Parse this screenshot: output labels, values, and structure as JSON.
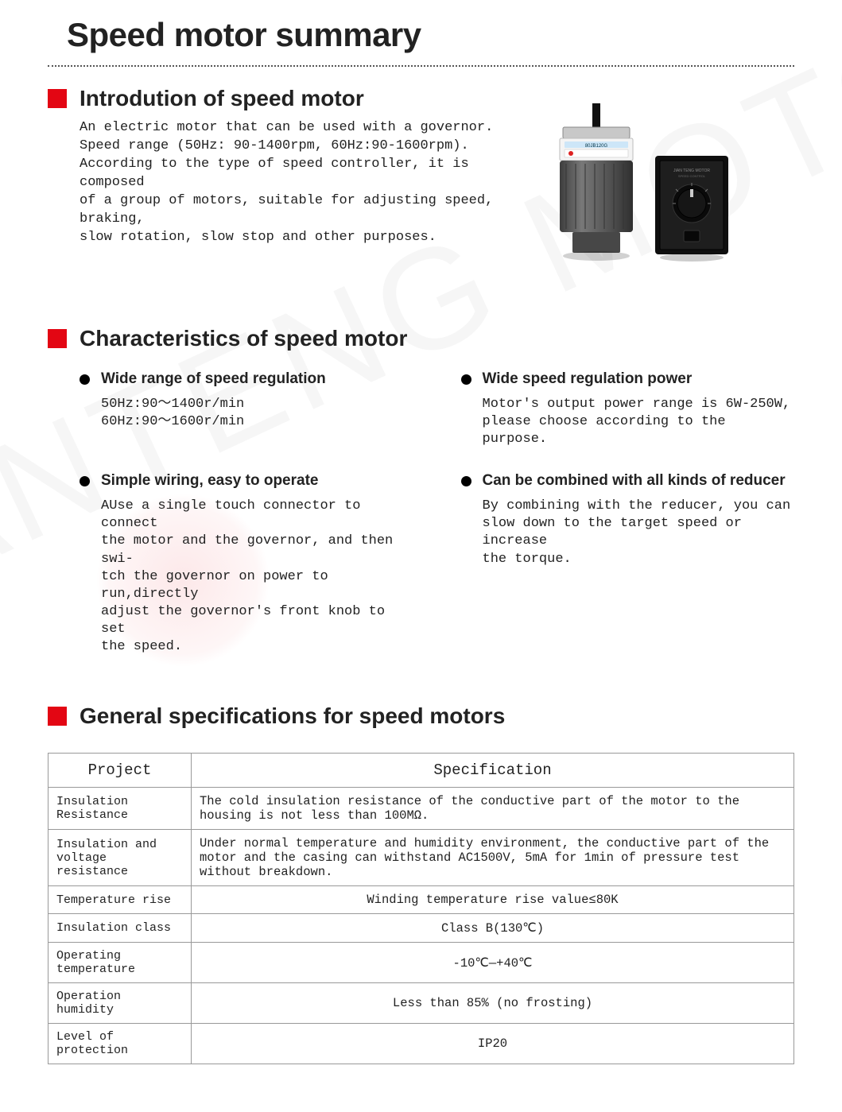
{
  "title": "Speed motor summary",
  "accent_color": "#e30613",
  "watermark_text": "JIANTENG MOTOR",
  "sections": {
    "intro": {
      "heading": "Introdution of speed motor",
      "body": "An electric motor that can be used with a governor.\nSpeed range (50Hz: 90-1400rpm, 60Hz:90-1600rpm).\nAccording to the type of speed controller, it is composed\nof a group of motors, suitable for adjusting speed, braking,\nslow rotation, slow stop and other purposes."
    },
    "characteristics": {
      "heading": "Characteristics of speed motor",
      "items": [
        {
          "title": "Wide range of speed regulation",
          "body": "50Hz:90～1400r/min\n60Hz:90～1600r/min"
        },
        {
          "title": "Wide speed regulation power",
          "body": "Motor's output power range is 6W-250W,\nplease choose according to the purpose."
        },
        {
          "title": "Simple wiring, easy to operate",
          "body": "AUse a single touch connector to connect\nthe motor and the governor, and then swi-\ntch the governor on power to run,directly\nadjust the governor's front knob to set\nthe speed."
        },
        {
          "title": "Can be combined with all kinds of reducer",
          "body": "By combining with the reducer, you can\nslow down to the target speed or increase\nthe torque."
        }
      ]
    },
    "specs": {
      "heading": "General specifications for speed motors",
      "columns": [
        "Project",
        "Specification"
      ],
      "rows": [
        {
          "project": "Insulation Resistance",
          "spec": "The cold insulation resistance of the conductive part of the motor to the housing is not less than 100MΩ.",
          "centered": false
        },
        {
          "project": "Insulation and voltage resistance",
          "spec": "Under normal temperature and humidity environment, the conductive part of the motor and the casing can withstand AC1500V, 5mA for 1min of pressure test without breakdown.",
          "centered": false
        },
        {
          "project": "Temperature rise",
          "spec": "Winding temperature rise value≤80K",
          "centered": true
        },
        {
          "project": "Insulation class",
          "spec": "Class B(130℃)",
          "centered": true
        },
        {
          "project": "Operating temperature",
          "spec": "-10℃—+40℃",
          "centered": true
        },
        {
          "project": "Operation humidity",
          "spec": "Less than 85% (no frosting)",
          "centered": true
        },
        {
          "project": "Level of protection",
          "spec": "IP20",
          "centered": true
        }
      ]
    }
  },
  "product_images": {
    "motor": {
      "label_text": "80JB120G",
      "body_color": "#5a5a5a",
      "top_plate_color": "#c8c8c8"
    },
    "controller": {
      "face_color": "#1a1a1a",
      "dial_color": "#0d0d0d"
    }
  }
}
